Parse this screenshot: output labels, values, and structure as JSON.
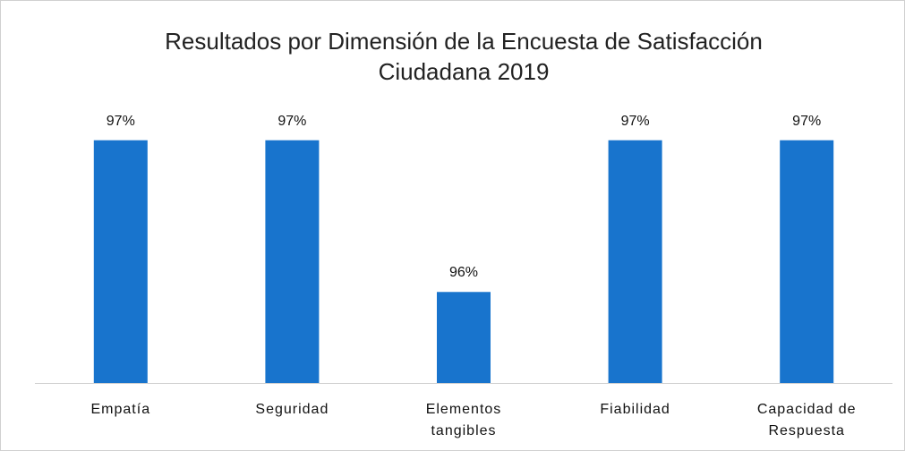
{
  "chart_data": {
    "type": "bar",
    "title": "Resultados por Dimensión de la Encuesta de Satisfacción Ciudadana 2019",
    "categories": [
      "Empatía",
      "Seguridad",
      "Elementos tangibles",
      "Fiabilidad",
      "Capacidad de Respuesta"
    ],
    "values": [
      97,
      97,
      96,
      97,
      97
    ],
    "value_labels": [
      "97%",
      "97%",
      "96%",
      "97%",
      "97%"
    ],
    "color": "#1874cd",
    "ylim": [
      95.4,
      97.6
    ]
  }
}
